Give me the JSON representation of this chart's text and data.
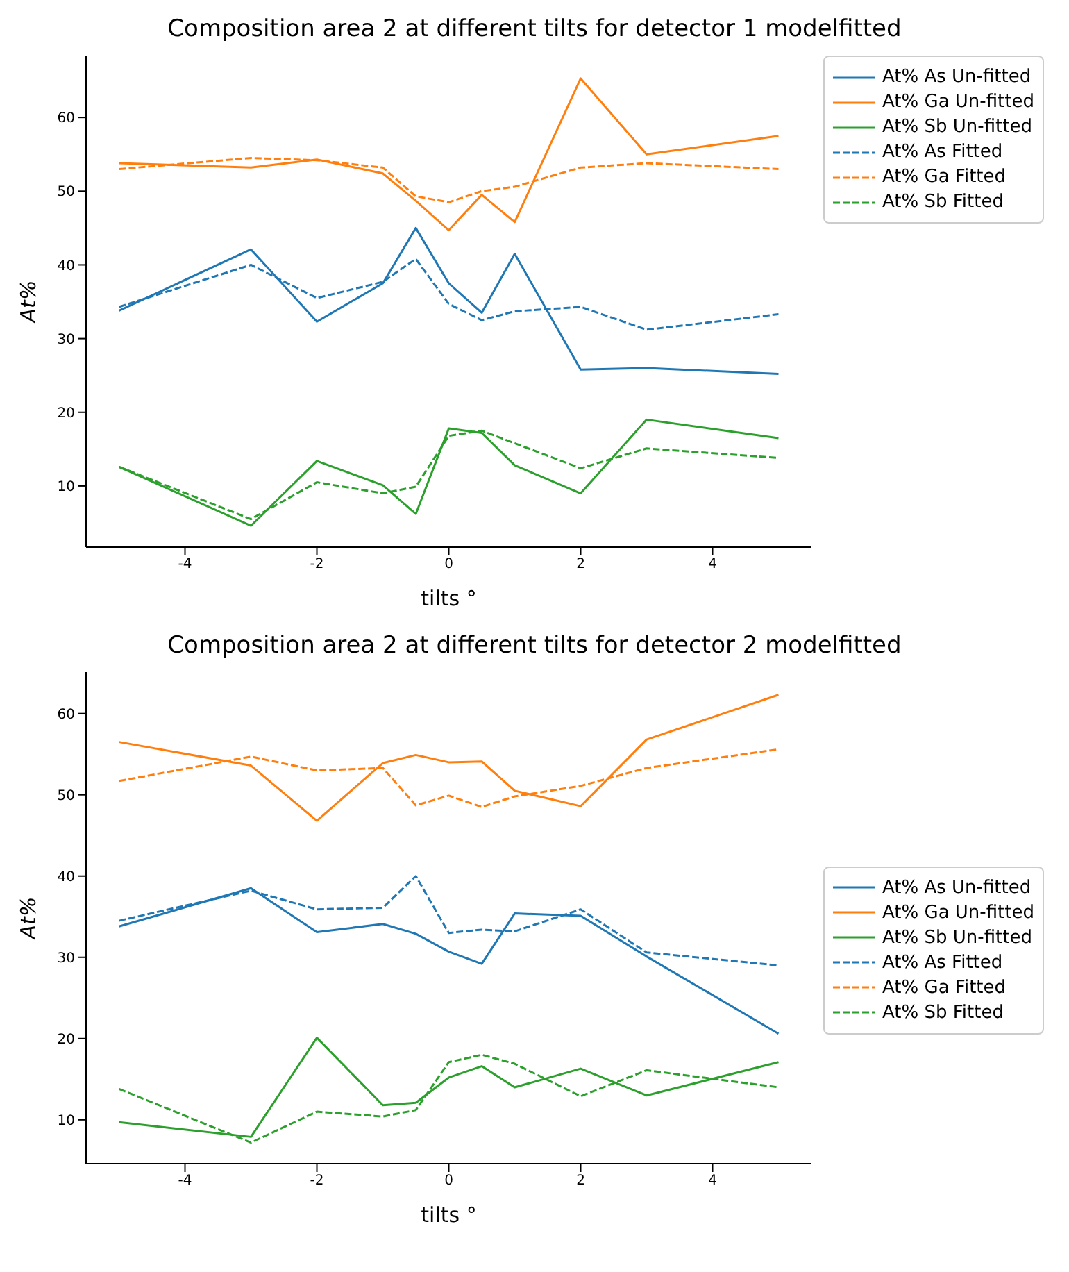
{
  "chart_data": [
    {
      "type": "line",
      "title": "Composition area 2 at different tilts for detector 1 modelfitted",
      "xlabel": "tilts °",
      "ylabel": "At%",
      "x": [
        -5,
        -3,
        -2,
        -1,
        -0.5,
        0,
        0.5,
        1,
        2,
        3,
        5
      ],
      "xlim": [
        -5.5,
        5.5
      ],
      "xticks": [
        -4,
        -2,
        0,
        2,
        4
      ],
      "ylim": [
        1.7,
        68.4
      ],
      "yticks": [
        10,
        20,
        30,
        40,
        50,
        60
      ],
      "legend": "top right",
      "series": [
        {
          "name": "At% As Un-fitted",
          "color": "#1f77b4",
          "line_style": "solid",
          "values": [
            33.8,
            42.1,
            32.3,
            37.5,
            45.0,
            37.5,
            33.5,
            41.5,
            25.8,
            26.0,
            25.2
          ]
        },
        {
          "name": "At% Ga Un-fitted",
          "color": "#ff7f0e",
          "line_style": "solid",
          "values": [
            53.8,
            53.2,
            54.3,
            52.4,
            48.7,
            44.7,
            49.5,
            45.8,
            65.3,
            55.0,
            57.5
          ]
        },
        {
          "name": "At% Sb Un-fitted",
          "color": "#2ca02c",
          "line_style": "solid",
          "values": [
            12.6,
            4.6,
            13.4,
            10.1,
            6.2,
            17.8,
            17.2,
            12.8,
            9.0,
            19.0,
            16.5
          ]
        },
        {
          "name": "At% As Fitted",
          "color": "#1f77b4",
          "line_style": "dashed",
          "values": [
            34.3,
            40.0,
            35.5,
            37.7,
            40.8,
            34.7,
            32.5,
            33.7,
            34.3,
            31.2,
            33.3
          ]
        },
        {
          "name": "At% Ga Fitted",
          "color": "#ff7f0e",
          "line_style": "dashed",
          "values": [
            53.0,
            54.5,
            54.2,
            53.2,
            49.3,
            48.5,
            50.0,
            50.6,
            53.2,
            53.8,
            53.0
          ]
        },
        {
          "name": "At% Sb Fitted",
          "color": "#2ca02c",
          "line_style": "dashed",
          "values": [
            12.6,
            5.5,
            10.5,
            9.0,
            9.9,
            16.8,
            17.5,
            15.8,
            12.4,
            15.1,
            13.8
          ]
        }
      ]
    },
    {
      "type": "line",
      "title": "Composition area 2 at different tilts for detector 2 modelfitted",
      "xlabel": "tilts °",
      "ylabel": "At%",
      "x": [
        -5,
        -3,
        -2,
        -1,
        -0.5,
        0,
        0.5,
        1,
        2,
        3,
        5
      ],
      "xlim": [
        -5.5,
        5.5
      ],
      "xticks": [
        -4,
        -2,
        0,
        2,
        4
      ],
      "ylim": [
        4.6,
        65.1
      ],
      "yticks": [
        10,
        20,
        30,
        40,
        50,
        60
      ],
      "legend": "right",
      "series": [
        {
          "name": "At% As Un-fitted",
          "color": "#1f77b4",
          "line_style": "solid",
          "values": [
            33.8,
            38.5,
            33.1,
            34.1,
            32.9,
            30.7,
            29.2,
            35.4,
            35.1,
            30.1,
            20.6
          ]
        },
        {
          "name": "At% Ga Un-fitted",
          "color": "#ff7f0e",
          "line_style": "solid",
          "values": [
            56.5,
            53.6,
            46.8,
            53.9,
            54.9,
            54.0,
            54.1,
            50.5,
            48.6,
            56.8,
            62.3
          ]
        },
        {
          "name": "At% Sb Un-fitted",
          "color": "#2ca02c",
          "line_style": "solid",
          "values": [
            9.7,
            7.9,
            20.1,
            11.8,
            12.1,
            15.2,
            16.6,
            14.0,
            16.3,
            13.0,
            17.1
          ]
        },
        {
          "name": "At% As Fitted",
          "color": "#1f77b4",
          "line_style": "dashed",
          "values": [
            34.5,
            38.2,
            35.9,
            36.1,
            40.0,
            33.0,
            33.4,
            33.2,
            35.9,
            30.6,
            29.0
          ]
        },
        {
          "name": "At% Ga Fitted",
          "color": "#ff7f0e",
          "line_style": "dashed",
          "values": [
            51.7,
            54.7,
            53.0,
            53.3,
            48.7,
            49.9,
            48.5,
            49.8,
            51.1,
            53.3,
            55.6
          ]
        },
        {
          "name": "At% Sb Fitted",
          "color": "#2ca02c",
          "line_style": "dashed",
          "values": [
            13.8,
            7.2,
            11.0,
            10.4,
            11.2,
            17.1,
            18.0,
            16.9,
            12.9,
            16.1,
            14.0
          ]
        }
      ]
    }
  ]
}
